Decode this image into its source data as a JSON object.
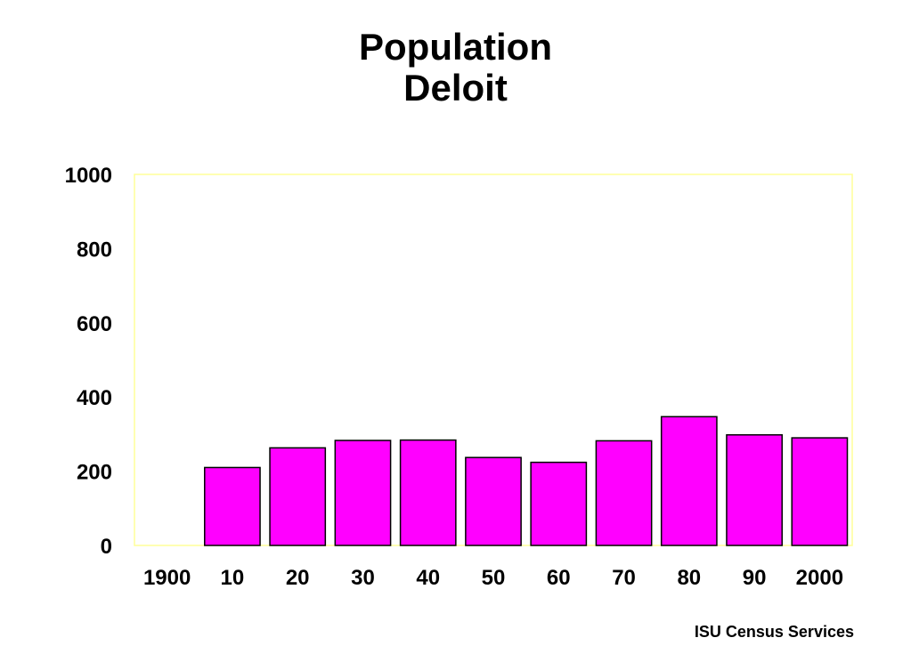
{
  "chart_data": {
    "type": "bar",
    "title": "Population",
    "subtitle": "Deloit",
    "categories": [
      "1900",
      "10",
      "20",
      "30",
      "40",
      "50",
      "60",
      "70",
      "80",
      "90",
      "2000"
    ],
    "values": [
      0,
      210,
      263,
      283,
      284,
      237,
      224,
      282,
      347,
      298,
      290
    ],
    "ylim": [
      0,
      1000
    ],
    "yticks": [
      0,
      200,
      400,
      600,
      800,
      1000
    ],
    "grid": false,
    "colors": {
      "bar": "#ff00ff",
      "bar_outline": "#000000",
      "plot_border": "#ffff99"
    }
  },
  "footer": {
    "credit": "ISU Census Services"
  }
}
